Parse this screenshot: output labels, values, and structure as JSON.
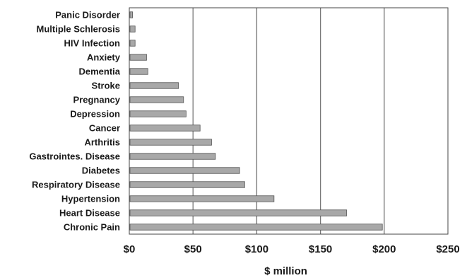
{
  "chart_data": {
    "type": "bar",
    "orientation": "horizontal",
    "categories": [
      "Panic Disorder",
      "Multiple Schlerosis",
      "HIV Infection",
      "Anxiety",
      "Dementia",
      "Stroke",
      "Pregnancy",
      "Depression",
      "Cancer",
      "Arthritis",
      "Gastrointes. Disease",
      "Diabetes",
      "Respiratory Disease",
      "Hypertension",
      "Heart Disease",
      "Chronic Pain"
    ],
    "values": [
      2,
      4,
      4,
      13,
      14,
      38,
      42,
      44,
      55,
      64,
      67,
      86,
      90,
      113,
      170,
      198
    ],
    "xlabel": "$ million",
    "xlim": [
      0,
      250
    ],
    "xticks": [
      0,
      50,
      100,
      150,
      200,
      250
    ],
    "xtick_labels": [
      "$0",
      "$50",
      "$100",
      "$150",
      "$200",
      "$250"
    ],
    "grid": true,
    "bar_color": "#a8a8a8",
    "bar_edge_color": "#555555"
  }
}
